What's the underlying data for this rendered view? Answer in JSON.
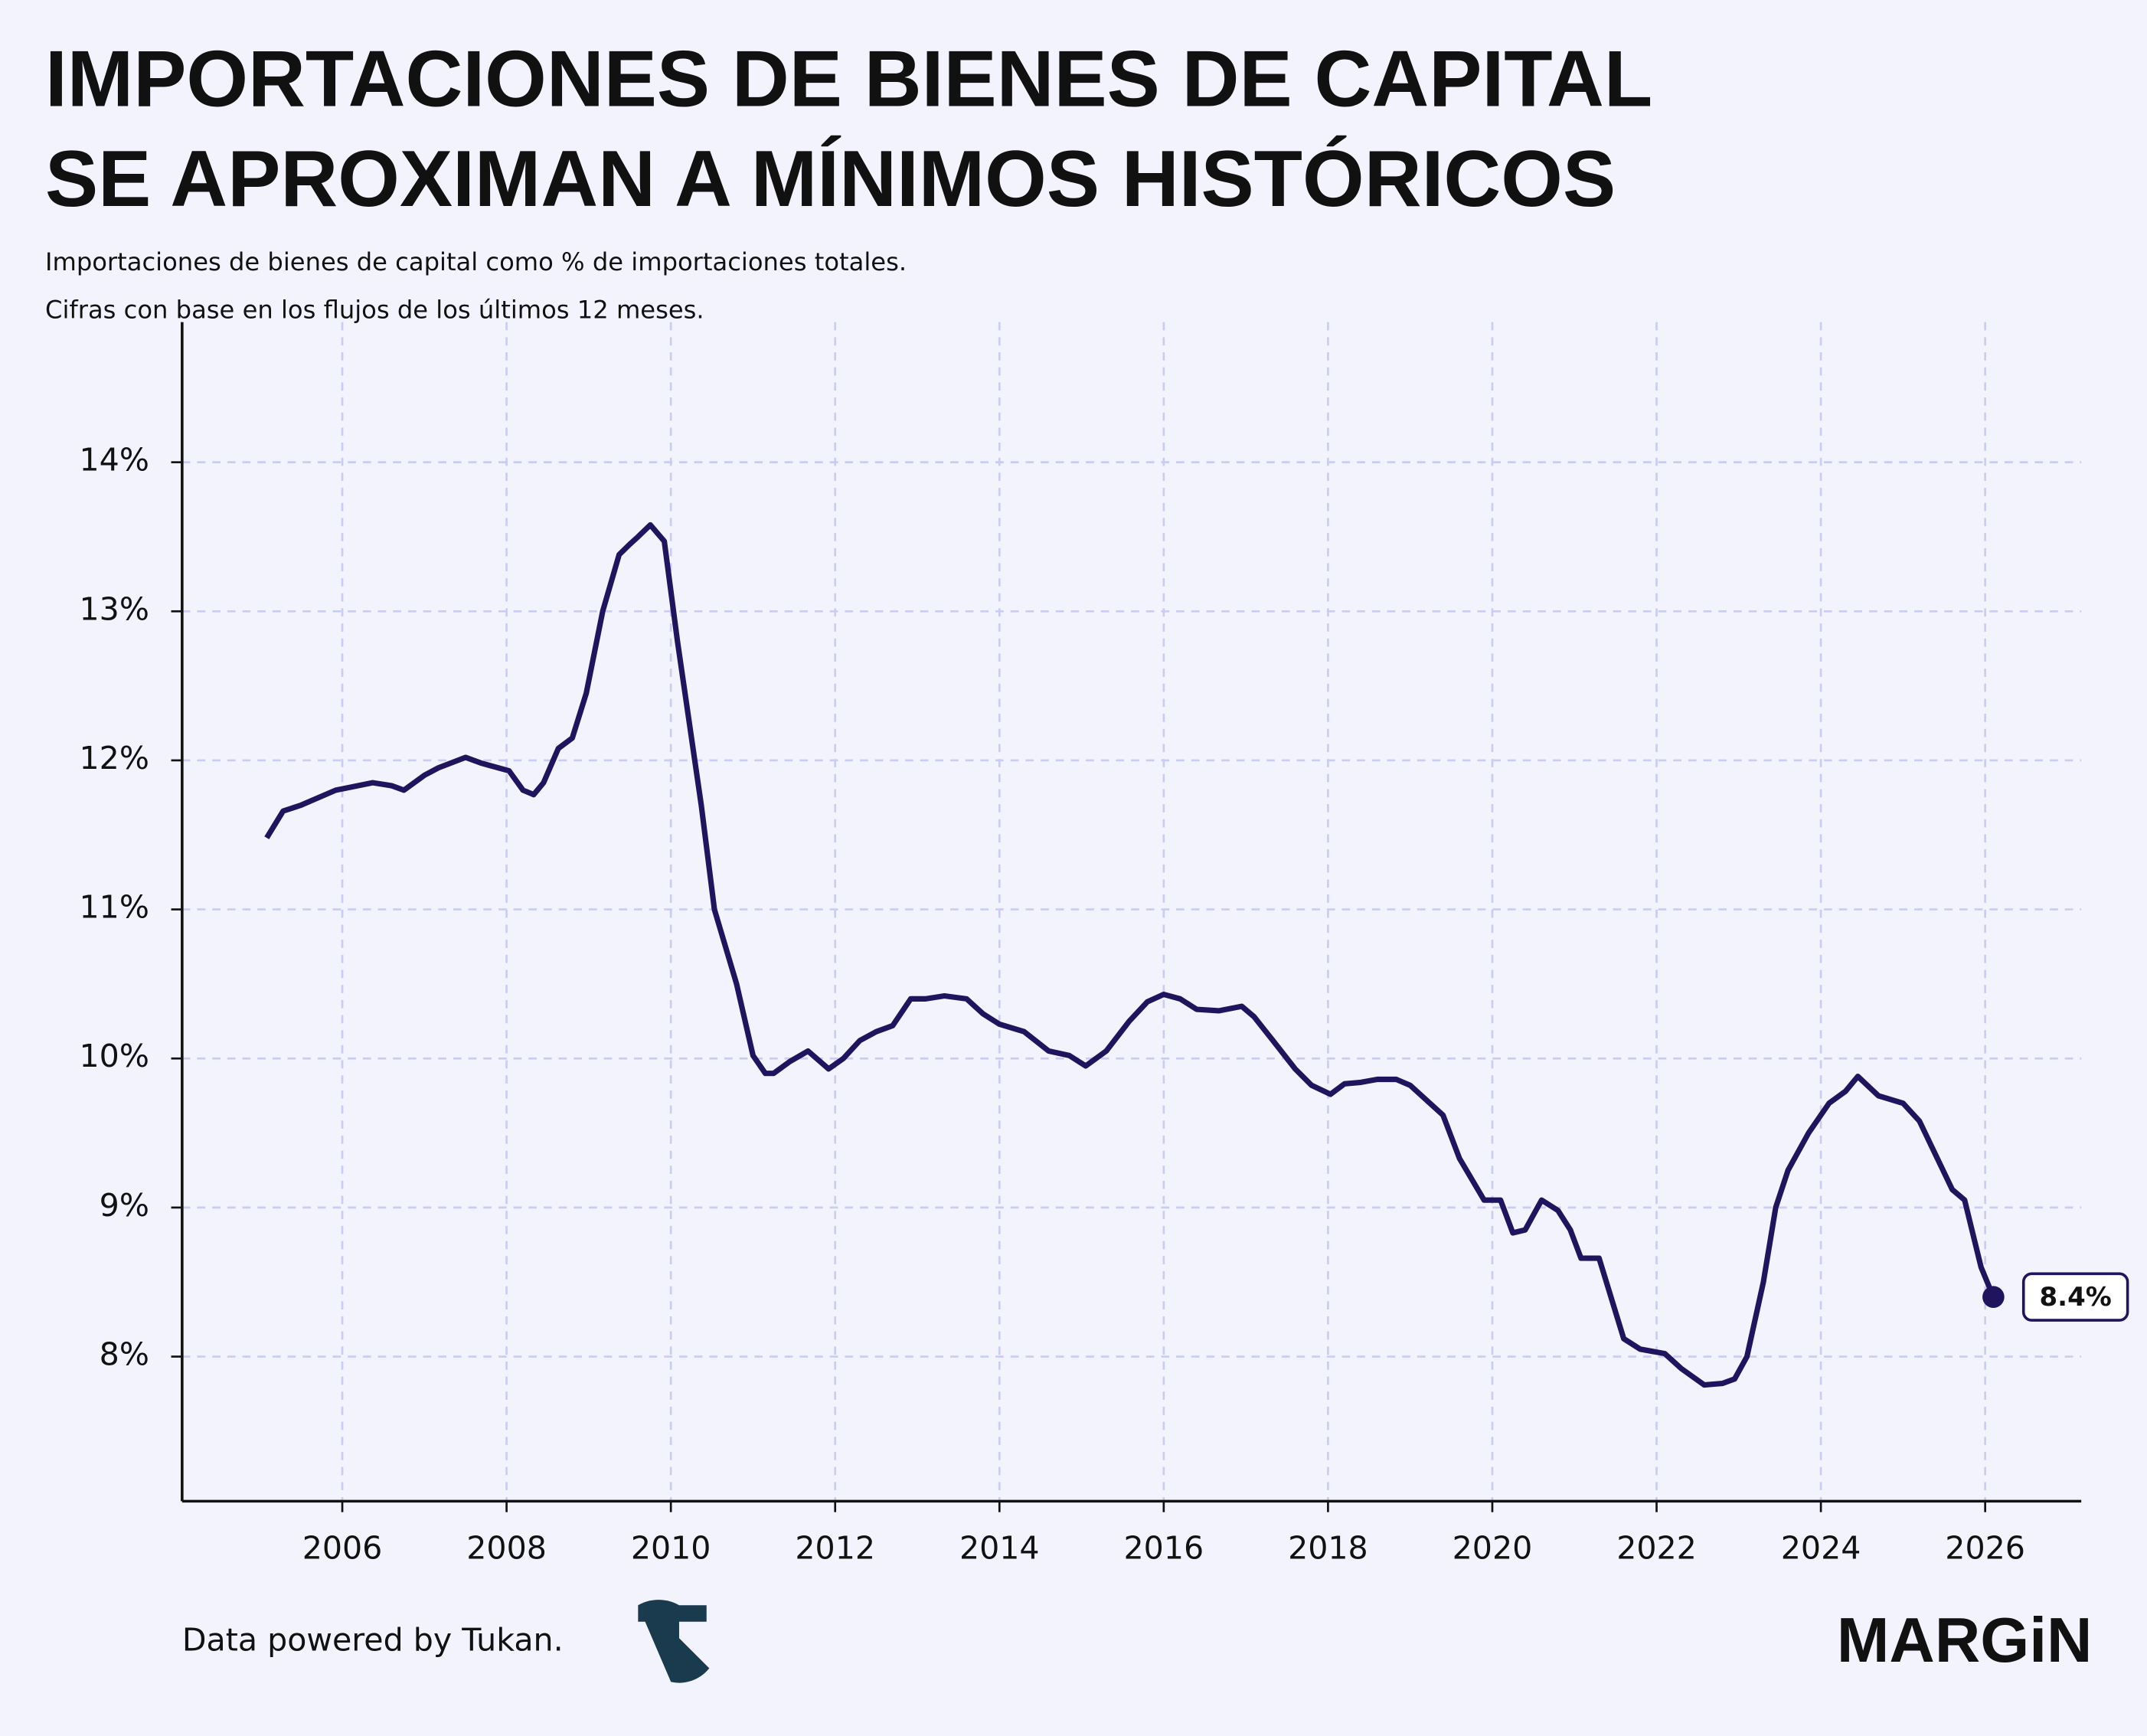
{
  "chart_data": {
    "type": "line",
    "title_lines": [
      "IMPORTACIONES DE BIENES DE CAPITAL",
      "SE APROXIMAN A MÍNIMOS HISTÓRICOS"
    ],
    "subtitle_lines": [
      "Importaciones de bienes de capital como % de importaciones totales.",
      "Cifras con base en los flujos de los últimos 12 meses."
    ],
    "x": [
      2005.08,
      2005.28,
      2005.5,
      2005.92,
      2006.1,
      2006.37,
      2006.6,
      2006.75,
      2007.0,
      2007.17,
      2007.5,
      2007.7,
      2008.03,
      2008.2,
      2008.33,
      2008.45,
      2008.63,
      2008.8,
      2008.97,
      2009.17,
      2009.37,
      2009.5,
      2009.6,
      2009.75,
      2009.92,
      2010.08,
      2010.37,
      2010.53,
      2010.8,
      2011.0,
      2011.15,
      2011.25,
      2011.45,
      2011.67,
      2011.92,
      2012.1,
      2012.3,
      2012.5,
      2012.7,
      2012.92,
      2013.1,
      2013.33,
      2013.6,
      2013.8,
      2014.0,
      2014.3,
      2014.6,
      2014.85,
      2015.05,
      2015.3,
      2015.58,
      2015.8,
      2016.0,
      2016.2,
      2016.4,
      2016.67,
      2016.95,
      2017.1,
      2017.33,
      2017.6,
      2017.8,
      2018.03,
      2018.2,
      2018.4,
      2018.6,
      2018.83,
      2019.0,
      2019.2,
      2019.4,
      2019.6,
      2019.9,
      2020.1,
      2020.25,
      2020.4,
      2020.6,
      2020.8,
      2020.95,
      2021.08,
      2021.3,
      2021.6,
      2021.8,
      2022.1,
      2022.3,
      2022.58,
      2022.8,
      2022.95,
      2023.1,
      2023.3,
      2023.45,
      2023.6,
      2023.85,
      2024.1,
      2024.3,
      2024.45,
      2024.7,
      2025.0,
      2025.2,
      2025.4,
      2025.6,
      2025.75,
      2025.95,
      2026.1
    ],
    "series": [
      {
        "name": "Bienes de capital",
        "color": "#21145f",
        "values": [
          11.48,
          11.66,
          11.7,
          11.8,
          11.82,
          11.85,
          11.83,
          11.8,
          11.9,
          11.95,
          12.02,
          11.98,
          11.93,
          11.8,
          11.77,
          11.85,
          12.08,
          12.15,
          12.45,
          13.0,
          13.38,
          13.45,
          13.5,
          13.58,
          13.47,
          12.8,
          11.7,
          11.0,
          10.5,
          10.02,
          9.9,
          9.9,
          9.98,
          10.05,
          9.93,
          10.0,
          10.12,
          10.18,
          10.22,
          10.4,
          10.4,
          10.42,
          10.4,
          10.3,
          10.23,
          10.18,
          10.05,
          10.02,
          9.95,
          10.05,
          10.25,
          10.38,
          10.43,
          10.4,
          10.33,
          10.32,
          10.35,
          10.28,
          10.12,
          9.93,
          9.82,
          9.76,
          9.83,
          9.84,
          9.86,
          9.86,
          9.82,
          9.72,
          9.62,
          9.33,
          9.05,
          9.05,
          8.83,
          8.85,
          9.05,
          8.98,
          8.85,
          8.66,
          8.66,
          8.12,
          8.05,
          8.02,
          7.92,
          7.81,
          7.82,
          7.85,
          8.0,
          8.5,
          9.0,
          9.25,
          9.5,
          9.7,
          9.78,
          9.88,
          9.75,
          9.7,
          9.58,
          9.35,
          9.12,
          9.05,
          8.6,
          8.4
        ]
      }
    ],
    "end_label": "8.4%",
    "xlim": [
      2004.05,
      2027.17
    ],
    "ylim": [
      7.03,
      14.94
    ],
    "xticks": [
      2006,
      2008,
      2010,
      2012,
      2014,
      2016,
      2018,
      2020,
      2022,
      2024,
      2026
    ],
    "yticks": [
      {
        "value": 8,
        "label": "8%"
      },
      {
        "value": 9,
        "label": "9%"
      },
      {
        "value": 10,
        "label": "10%"
      },
      {
        "value": 11,
        "label": "11%"
      },
      {
        "value": 12,
        "label": "12%"
      },
      {
        "value": 13,
        "label": "13%"
      },
      {
        "value": 14,
        "label": "14%"
      }
    ],
    "grid": true,
    "source": "Data powered by Tukan.",
    "brand": "MARGiN"
  }
}
